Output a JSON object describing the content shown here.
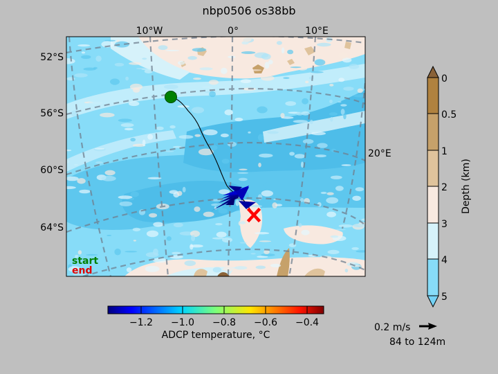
{
  "title": "nbp0506 os38bb",
  "map": {
    "lon_ticks": [
      "10°W",
      "0°",
      "10°E"
    ],
    "lat_ticks": [
      "52°S",
      "56°S",
      "60°S",
      "64°S"
    ],
    "right_tick": "20°E",
    "legend_start": "start",
    "legend_end": "end",
    "start_color": "#008000",
    "end_color": "#ff0000",
    "track_color": "#000000"
  },
  "colorbar_depth": {
    "label": "Depth (km)",
    "ticks": [
      "0",
      "0.5",
      "1",
      "2",
      "3",
      "4",
      "5"
    ],
    "colors": [
      "#b0823f",
      "#c6a16a",
      "#dfc39c",
      "#f8e9e0",
      "#d6f2fa",
      "#87dcf8"
    ],
    "extend_top_color": "#8a6238",
    "extend_bottom_color": "#74d2f5"
  },
  "colorbar_temp": {
    "label": "ADCP temperature, °C",
    "ticks": [
      "−1.2",
      "−1.0",
      "−0.8",
      "−0.6",
      "−0.4"
    ],
    "range": [
      -1.38,
      -0.32
    ]
  },
  "scale_arrow": {
    "label": "0.2 m/s",
    "depth_range": "84 to 124m"
  },
  "chart_data": {
    "type": "map",
    "title": "nbp0506 os38bb",
    "track": {
      "start_marker": "start",
      "end_marker": "end",
      "vectors_color_range_degC": [
        -1.38,
        -0.32
      ]
    },
    "depth_colorbar_km": [
      0,
      0.5,
      1,
      2,
      3,
      4,
      5
    ],
    "temperature_colorbar_degC": [
      -1.2,
      -1.0,
      -0.8,
      -0.6,
      -0.4
    ]
  }
}
